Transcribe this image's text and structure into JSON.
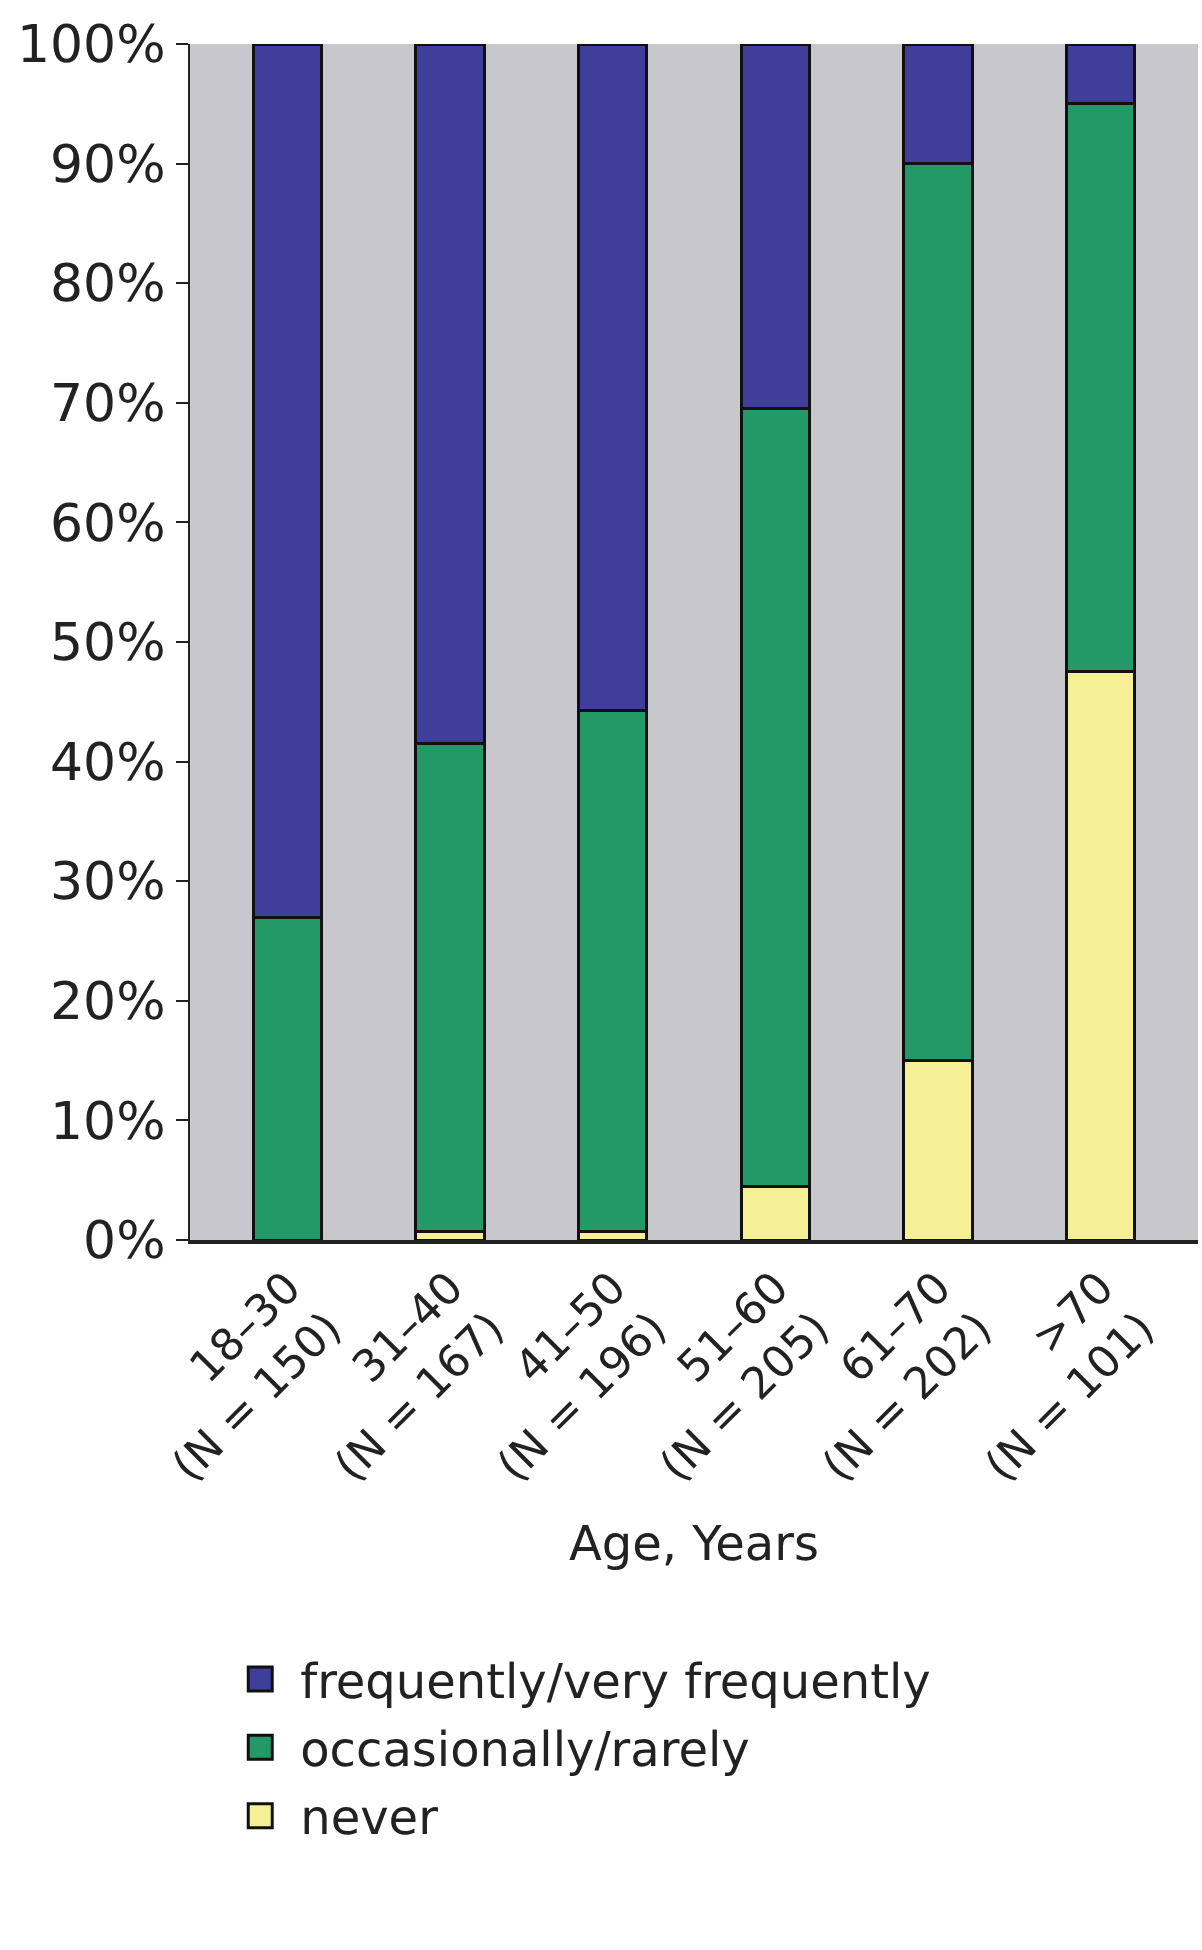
{
  "chart_data": {
    "type": "bar",
    "stacked": true,
    "xlabel": "Age, Years",
    "categories": [
      "18–30\n(N = 150)",
      "31–40\n(N = 167)",
      "41–50\n(N = 196)",
      "51–60\n(N = 205)",
      "61–70\n(N = 202)",
      ">70\n(N = 101)"
    ],
    "series": [
      {
        "name": "never",
        "color": "#f5ef96",
        "values": [
          0,
          0.7,
          0.7,
          4.5,
          15,
          47.5
        ]
      },
      {
        "name": "occasionally/rarely",
        "color": "#229966",
        "values": [
          27,
          40.8,
          43.6,
          65,
          75,
          47.5
        ]
      },
      {
        "name": "frequently/very frequently",
        "color": "#3f3f9b",
        "values": [
          73,
          58.5,
          55.7,
          30.5,
          10,
          5
        ]
      }
    ],
    "ylim": [
      0,
      100
    ],
    "yticks": [
      {
        "value": 0,
        "label": "0%"
      },
      {
        "value": 10,
        "label": "10%"
      },
      {
        "value": 20,
        "label": "20%"
      },
      {
        "value": 30,
        "label": "30%"
      },
      {
        "value": 40,
        "label": "40%"
      },
      {
        "value": 50,
        "label": "50%"
      },
      {
        "value": 60,
        "label": "60%"
      },
      {
        "value": 70,
        "label": "70%"
      },
      {
        "value": 80,
        "label": "80%"
      },
      {
        "value": 90,
        "label": "90%"
      },
      {
        "value": 100,
        "label": "100%"
      }
    ],
    "grid": false,
    "legend": "bottom"
  }
}
